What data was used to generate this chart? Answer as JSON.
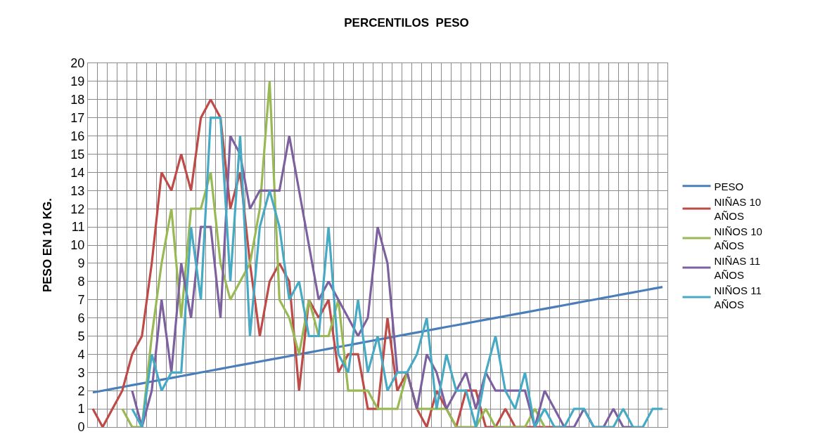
{
  "chart_data": {
    "type": "line",
    "title": "PERCENTILOS  PESO",
    "ylabel": "PESO EN 10 KG.",
    "categories": [
      null,
      null,
      null,
      null,
      null,
      null,
      null,
      null,
      null,
      null,
      null,
      null,
      null,
      null,
      null,
      null,
      null,
      null,
      null,
      null,
      null,
      null,
      null,
      null,
      null,
      null,
      null,
      null,
      null,
      null,
      null,
      null,
      null,
      null,
      null,
      null,
      null,
      null,
      null,
      null,
      null,
      null,
      null,
      null,
      null,
      null,
      null,
      null,
      null,
      null,
      null,
      null,
      null,
      null,
      null,
      null,
      null,
      null,
      null
    ],
    "series": [
      {
        "name": "PESO",
        "color": "#4a7ebb",
        "values": [
          1.9,
          2.0,
          2.1,
          2.2,
          2.3,
          2.4,
          2.5,
          2.6,
          2.7,
          2.8,
          2.9,
          3.0,
          3.1,
          3.2,
          3.3,
          3.4,
          3.5,
          3.6,
          3.7,
          3.8,
          3.9,
          4.0,
          4.1,
          4.2,
          4.3,
          4.4,
          4.5,
          4.6,
          4.7,
          4.8,
          4.9,
          5.0,
          5.1,
          5.2,
          5.3,
          5.4,
          5.5,
          5.6,
          5.7,
          5.8,
          5.9,
          6.0,
          6.1,
          6.2,
          6.3,
          6.4,
          6.5,
          6.6,
          6.7,
          6.8,
          6.9,
          7.0,
          7.1,
          7.2,
          7.3,
          7.4,
          7.5,
          7.6,
          7.7
        ]
      },
      {
        "name": "NIÑAS 10 AÑOS",
        "color": "#be4b48",
        "values": [
          1,
          0,
          1,
          2,
          4,
          5,
          9,
          14,
          13,
          15,
          13,
          17,
          18,
          17,
          12,
          14,
          9,
          5,
          8,
          9,
          8,
          2,
          7,
          6,
          7,
          3,
          4,
          4,
          1,
          1,
          6,
          2,
          3,
          1,
          0,
          2,
          1,
          0,
          2,
          2,
          0,
          0,
          1,
          0,
          0,
          0,
          0,
          0,
          0,
          null,
          null,
          null,
          null,
          null,
          null,
          null,
          null,
          null,
          null
        ]
      },
      {
        "name": "NIÑOS 10 AÑOS",
        "color": "#98b954",
        "values": [
          null,
          null,
          null,
          1,
          0,
          0,
          5,
          9,
          12,
          6,
          12,
          12,
          14,
          9,
          7,
          8,
          9,
          12,
          19,
          7,
          6,
          4,
          7,
          5,
          5,
          7,
          2,
          2,
          2,
          1,
          1,
          1,
          3,
          1,
          1,
          1,
          1,
          0,
          0,
          0,
          1,
          0,
          0,
          0,
          0,
          1,
          0,
          null,
          null,
          null,
          null,
          null,
          null,
          null,
          null,
          null,
          null,
          null,
          null
        ]
      },
      {
        "name": "NIÑAS 11 AÑOS",
        "color": "#7d60a0",
        "values": [
          null,
          null,
          null,
          null,
          2,
          0,
          2,
          7,
          3,
          9,
          6,
          11,
          11,
          6,
          16,
          15,
          12,
          13,
          13,
          13,
          16,
          13,
          10,
          7,
          8,
          7,
          6,
          5,
          6,
          11,
          9,
          3,
          3,
          1,
          4,
          3,
          1,
          2,
          3,
          1,
          3,
          2,
          2,
          2,
          2,
          0,
          2,
          1,
          0,
          0,
          1,
          0,
          0,
          1,
          0,
          0,
          null,
          null,
          null
        ]
      },
      {
        "name": "NIÑOS 11 AÑOS",
        "color": "#46aac5",
        "values": [
          null,
          null,
          null,
          null,
          1,
          0,
          4,
          2,
          3,
          3,
          11,
          7,
          17,
          17,
          8,
          16,
          5,
          11,
          13,
          11,
          7,
          8,
          5,
          5,
          11,
          4,
          3,
          7,
          3,
          5,
          2,
          3,
          3,
          4,
          6,
          1,
          4,
          2,
          2,
          0,
          3,
          5,
          2,
          1,
          3,
          0,
          1,
          0,
          0,
          1,
          1,
          0,
          0,
          0,
          1,
          0,
          0,
          1,
          1
        ]
      }
    ],
    "ylim": [
      0,
      20
    ],
    "yticks": [
      0,
      1,
      2,
      3,
      4,
      5,
      6,
      7,
      8,
      9,
      10,
      11,
      12,
      13,
      14,
      15,
      16,
      17,
      18,
      19,
      20
    ],
    "grid": true,
    "legend": "right",
    "tick_labels": "y",
    "line_style": "solid"
  }
}
